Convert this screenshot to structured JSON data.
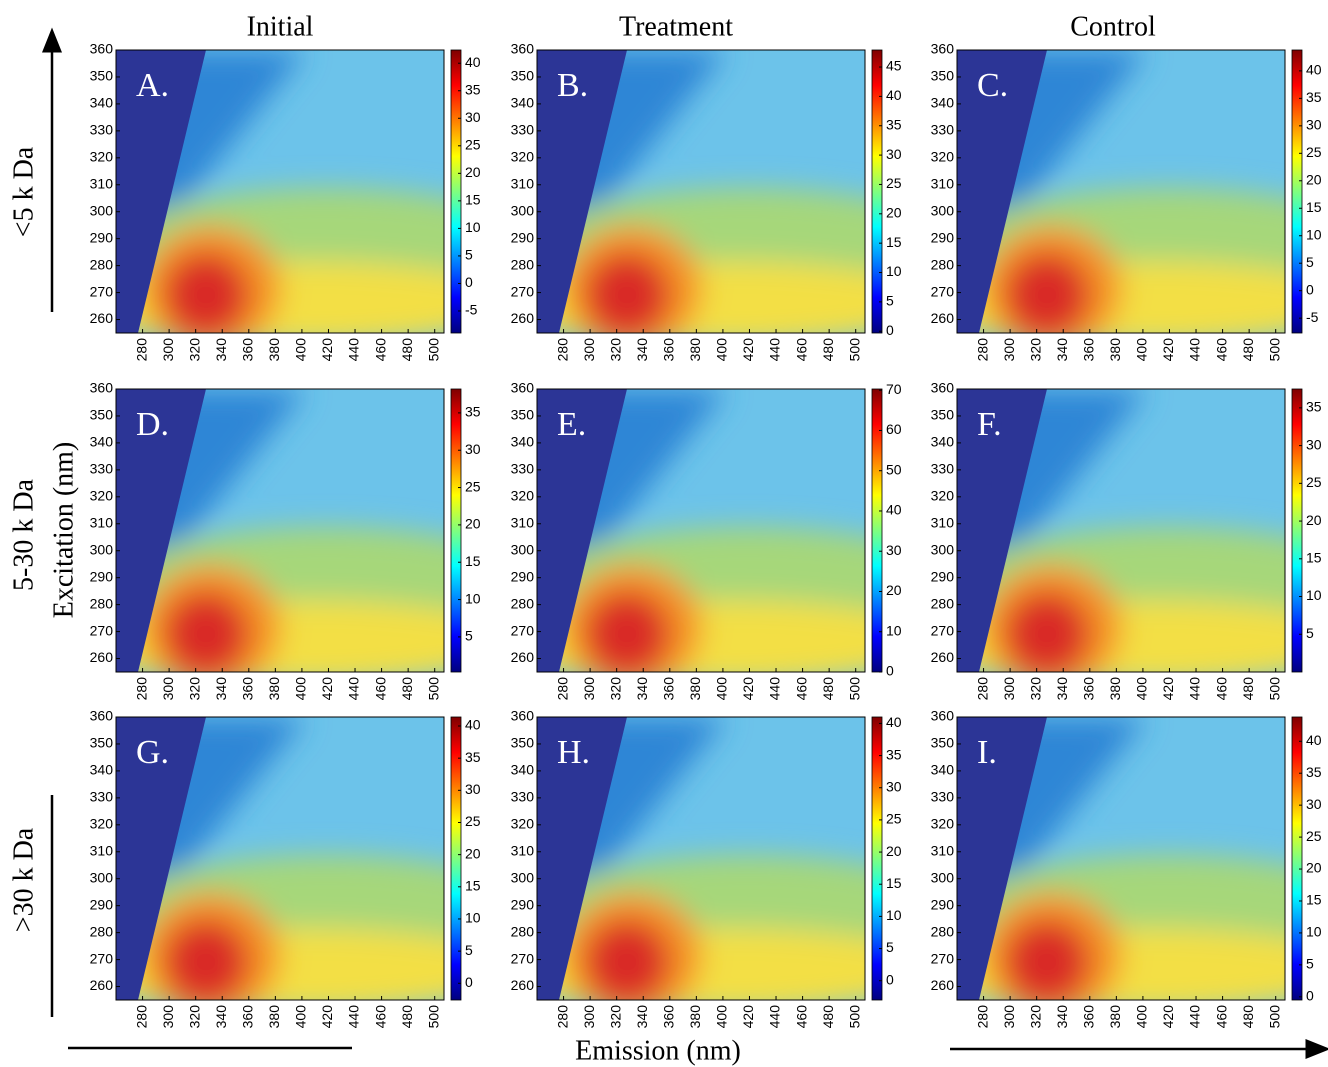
{
  "figure": {
    "column_titles": [
      "Initial",
      "Treatment",
      "Control"
    ],
    "row_labels": [
      "<5 k Da",
      "5-30 k Da",
      ">30 k Da"
    ],
    "y_label": "Excitation (nm)",
    "x_label": "Emission (nm)"
  },
  "chart_data": [
    {
      "type": "heatmap",
      "title": "A.",
      "colormap": "jet",
      "xlim": [
        260,
        507
      ],
      "ylim": [
        255,
        360
      ],
      "xticks": [
        280,
        300,
        320,
        340,
        360,
        380,
        400,
        420,
        440,
        460,
        480,
        500
      ],
      "yticks": [
        260,
        270,
        280,
        290,
        300,
        310,
        320,
        330,
        340,
        350,
        360
      ],
      "zlim": [
        -9,
        42.4
      ],
      "zticks": [
        -5,
        0,
        5,
        10,
        15,
        20,
        25,
        30,
        35,
        40
      ]
    },
    {
      "type": "heatmap",
      "title": "B.",
      "colormap": "jet",
      "xlim": [
        260,
        507
      ],
      "ylim": [
        255,
        360
      ],
      "xticks": [
        280,
        300,
        320,
        340,
        360,
        380,
        400,
        420,
        440,
        460,
        480,
        500
      ],
      "yticks": [
        260,
        270,
        280,
        290,
        300,
        310,
        320,
        330,
        340,
        350,
        360
      ],
      "zlim": [
        -0.3,
        47.9
      ],
      "zticks": [
        0,
        5,
        10,
        15,
        20,
        25,
        30,
        35,
        40,
        45
      ]
    },
    {
      "type": "heatmap",
      "title": "C.",
      "colormap": "jet",
      "xlim": [
        260,
        507
      ],
      "ylim": [
        255,
        360
      ],
      "xticks": [
        280,
        300,
        320,
        340,
        360,
        380,
        400,
        420,
        440,
        460,
        480,
        500
      ],
      "yticks": [
        260,
        270,
        280,
        290,
        300,
        310,
        320,
        330,
        340,
        350,
        360
      ],
      "zlim": [
        -7.7,
        43.8
      ],
      "zticks": [
        -5,
        0,
        5,
        10,
        15,
        20,
        25,
        30,
        35,
        40
      ]
    },
    {
      "type": "heatmap",
      "title": "D.",
      "colormap": "jet",
      "xlim": [
        260,
        507
      ],
      "ylim": [
        255,
        360
      ],
      "xticks": [
        280,
        300,
        320,
        340,
        360,
        380,
        400,
        420,
        440,
        460,
        480,
        500
      ],
      "yticks": [
        260,
        270,
        280,
        290,
        300,
        310,
        320,
        330,
        340,
        350,
        360
      ],
      "zlim": [
        0.3,
        38.2
      ],
      "zticks": [
        5,
        10,
        15,
        20,
        25,
        30,
        35
      ]
    },
    {
      "type": "heatmap",
      "title": "E.",
      "colormap": "jet",
      "xlim": [
        260,
        507
      ],
      "ylim": [
        255,
        360
      ],
      "xticks": [
        280,
        300,
        320,
        340,
        360,
        380,
        400,
        420,
        440,
        460,
        480,
        500
      ],
      "yticks": [
        260,
        270,
        280,
        290,
        300,
        310,
        320,
        330,
        340,
        350,
        360
      ],
      "zlim": [
        0,
        70.3
      ],
      "zticks": [
        0,
        10,
        20,
        30,
        40,
        50,
        60,
        70
      ]
    },
    {
      "type": "heatmap",
      "title": "F.",
      "colormap": "jet",
      "xlim": [
        260,
        507
      ],
      "ylim": [
        255,
        360
      ],
      "xticks": [
        280,
        300,
        320,
        340,
        360,
        380,
        400,
        420,
        440,
        460,
        480,
        500
      ],
      "yticks": [
        260,
        270,
        280,
        290,
        300,
        310,
        320,
        330,
        340,
        350,
        360
      ],
      "zlim": [
        0,
        37.5
      ],
      "zticks": [
        5,
        10,
        15,
        20,
        25,
        30,
        35
      ]
    },
    {
      "type": "heatmap",
      "title": "G.",
      "colormap": "jet",
      "xlim": [
        260,
        507
      ],
      "ylim": [
        255,
        360
      ],
      "xticks": [
        280,
        300,
        320,
        340,
        360,
        380,
        400,
        420,
        440,
        460,
        480,
        500
      ],
      "yticks": [
        260,
        270,
        280,
        290,
        300,
        310,
        320,
        330,
        340,
        350,
        360
      ],
      "zlim": [
        -2.6,
        41.4
      ],
      "zticks": [
        0,
        5,
        10,
        15,
        20,
        25,
        30,
        35,
        40
      ]
    },
    {
      "type": "heatmap",
      "title": "H.",
      "colormap": "jet",
      "xlim": [
        260,
        507
      ],
      "ylim": [
        255,
        360
      ],
      "xticks": [
        280,
        300,
        320,
        340,
        360,
        380,
        400,
        420,
        440,
        460,
        480,
        500
      ],
      "yticks": [
        260,
        270,
        280,
        290,
        300,
        310,
        320,
        330,
        340,
        350,
        360
      ],
      "zlim": [
        -3,
        41
      ],
      "zticks": [
        0,
        5,
        10,
        15,
        20,
        25,
        30,
        35,
        40
      ]
    },
    {
      "type": "heatmap",
      "title": "I.",
      "colormap": "jet",
      "xlim": [
        260,
        507
      ],
      "ylim": [
        255,
        360
      ],
      "xticks": [
        280,
        300,
        320,
        340,
        360,
        380,
        400,
        420,
        440,
        460,
        480,
        500
      ],
      "yticks": [
        260,
        270,
        280,
        290,
        300,
        310,
        320,
        330,
        340,
        350,
        360
      ],
      "zlim": [
        -0.5,
        43.8
      ],
      "zticks": [
        0,
        5,
        10,
        15,
        20,
        25,
        30,
        35,
        40
      ]
    }
  ]
}
